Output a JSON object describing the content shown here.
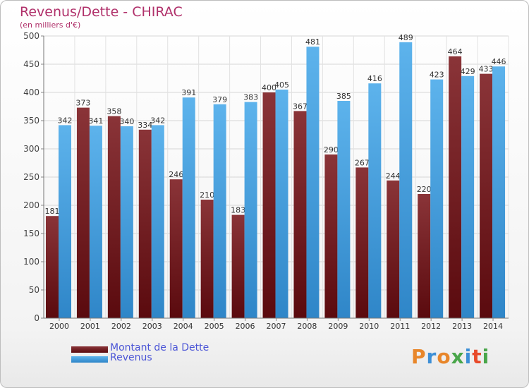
{
  "title": "Revenus/Dette - CHIRAC",
  "subtitle": "(en milliers d'€)",
  "logo": "Proxiti",
  "colors": {
    "dette": "#7a2a2e",
    "revenus": "#4aa3e0",
    "title": "#b0306a",
    "legend_text": "#4b55d6"
  },
  "chart_data": {
    "type": "bar",
    "title": "Revenus/Dette - CHIRAC",
    "ylabel": "(en milliers d'€)",
    "ylim": [
      0,
      500
    ],
    "yticks": [
      0,
      50,
      100,
      150,
      200,
      250,
      300,
      350,
      400,
      450,
      500
    ],
    "grid": true,
    "legend_position": "bottom-left",
    "categories": [
      "2000",
      "2001",
      "2002",
      "2003",
      "2004",
      "2005",
      "2006",
      "2007",
      "2008",
      "2009",
      "2010",
      "2011",
      "2012",
      "2013",
      "2014"
    ],
    "series": [
      {
        "name": "Montant de la Dette",
        "values": [
          181,
          373,
          358,
          334,
          246,
          210,
          183,
          400,
          367,
          290,
          267,
          244,
          220,
          464,
          433
        ],
        "labels": [
          "181",
          "373",
          "358",
          "334",
          "246",
          "210",
          "183",
          "400",
          "367",
          "290",
          "267",
          "244",
          "220",
          "464",
          "433"
        ]
      },
      {
        "name": "Revenus",
        "values": [
          342,
          341,
          340,
          342,
          391,
          379,
          383,
          405,
          481,
          385,
          416,
          489,
          423,
          429,
          446
        ],
        "labels": [
          "342",
          "341",
          "340",
          "342",
          "391",
          "379",
          "383",
          "405",
          "481",
          "385",
          "416",
          "489",
          "423",
          "429",
          "446"
        ]
      }
    ]
  }
}
